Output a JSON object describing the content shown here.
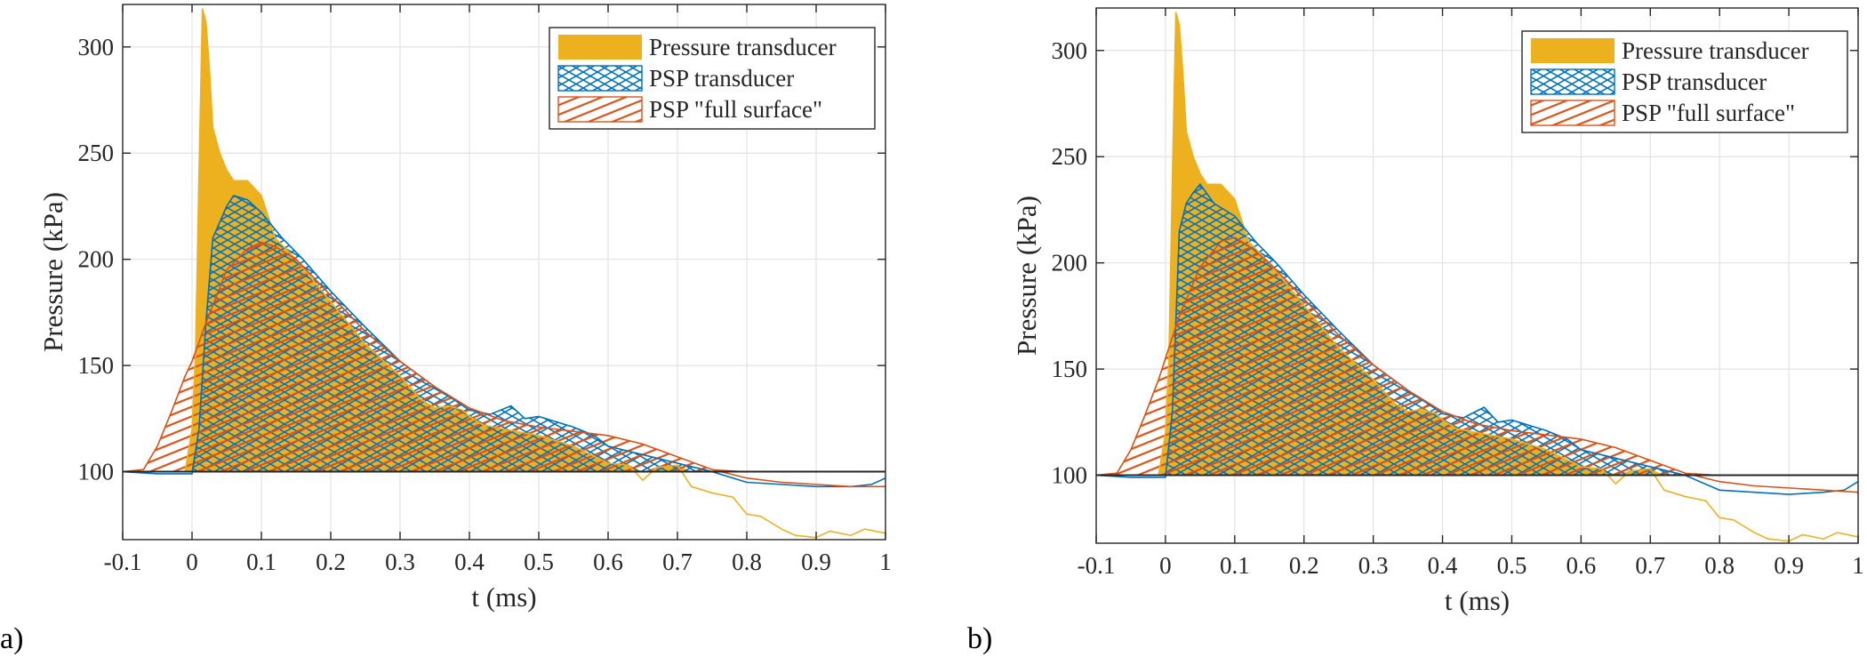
{
  "colors": {
    "pressure_transducer": "#EDB120",
    "psp_transducer": "#0072BD",
    "psp_full_surface": "#D95319",
    "reference_line": "#262626",
    "grid": "#e3e3e3",
    "axes": "#262626"
  },
  "panel_labels": [
    "a)",
    "b)"
  ],
  "chart_data": [
    {
      "type": "area",
      "panel": "a)",
      "xlabel": "t (ms)",
      "ylabel": "Pressure (kPa)",
      "xlim": [
        -0.1,
        1.0
      ],
      "ylim": [
        68,
        320
      ],
      "xticks": [
        "-0.1",
        "0",
        "0.1",
        "0.2",
        "0.3",
        "0.4",
        "0.5",
        "0.6",
        "0.7",
        "0.8",
        "0.9",
        "1"
      ],
      "xtick_values": [
        -0.1,
        0,
        0.1,
        0.2,
        0.3,
        0.4,
        0.5,
        0.6,
        0.7,
        0.8,
        0.9,
        1.0
      ],
      "yticks": [
        "100",
        "150",
        "200",
        "250",
        "300"
      ],
      "ytick_values": [
        100,
        150,
        200,
        250,
        300
      ],
      "grid": true,
      "legend_position": "top-right",
      "baseline": 100,
      "series": [
        {
          "name": "Pressure transducer",
          "fill": "solid",
          "x": [
            -0.1,
            -0.05,
            -0.01,
            0.0,
            0.005,
            0.01,
            0.015,
            0.02,
            0.025,
            0.03,
            0.04,
            0.05,
            0.06,
            0.07,
            0.08,
            0.1,
            0.12,
            0.15,
            0.2,
            0.25,
            0.3,
            0.33,
            0.35,
            0.37,
            0.39,
            0.4,
            0.42,
            0.45,
            0.5,
            0.55,
            0.6,
            0.63,
            0.65,
            0.67,
            0.7,
            0.72,
            0.75,
            0.78,
            0.8,
            0.82,
            0.85,
            0.87,
            0.9,
            0.92,
            0.95,
            0.97,
            1.0
          ],
          "values": [
            100,
            100,
            100,
            120,
            155,
            240,
            318,
            312,
            290,
            262,
            250,
            242,
            237,
            237,
            237,
            230,
            210,
            200,
            180,
            160,
            145,
            134,
            130,
            131,
            129,
            126,
            122,
            120,
            117,
            112,
            104,
            103,
            96,
            102,
            103,
            93,
            90,
            88,
            80,
            79,
            73,
            70,
            69,
            72,
            70,
            73,
            71
          ]
        },
        {
          "name": "PSP transducer",
          "fill": "crosshatch",
          "x": [
            -0.1,
            -0.05,
            0.0,
            0.01,
            0.02,
            0.03,
            0.05,
            0.06,
            0.08,
            0.1,
            0.13,
            0.16,
            0.2,
            0.25,
            0.3,
            0.35,
            0.4,
            0.43,
            0.46,
            0.48,
            0.5,
            0.53,
            0.55,
            0.58,
            0.6,
            0.65,
            0.7,
            0.75,
            0.8,
            0.85,
            0.9,
            0.95,
            0.98,
            1.0
          ],
          "values": [
            100,
            99,
            99,
            120,
            170,
            210,
            225,
            230,
            228,
            222,
            210,
            200,
            185,
            168,
            152,
            140,
            129,
            127,
            131,
            125,
            126,
            123,
            121,
            117,
            112,
            108,
            104,
            100,
            95,
            94,
            93,
            93,
            94,
            97
          ]
        },
        {
          "name": "PSP \"full surface\"",
          "fill": "diagonal",
          "x": [
            -0.1,
            -0.07,
            -0.05,
            -0.03,
            -0.01,
            0.0,
            0.02,
            0.05,
            0.08,
            0.1,
            0.12,
            0.15,
            0.2,
            0.25,
            0.3,
            0.35,
            0.4,
            0.45,
            0.5,
            0.55,
            0.6,
            0.65,
            0.7,
            0.75,
            0.8,
            0.85,
            0.9,
            0.95,
            1.0
          ],
          "values": [
            100,
            101,
            112,
            128,
            145,
            152,
            170,
            195,
            205,
            208,
            206,
            200,
            183,
            166,
            152,
            140,
            130,
            124,
            121,
            119,
            117,
            113,
            107,
            101,
            97,
            95,
            94,
            93,
            93
          ]
        }
      ]
    },
    {
      "type": "area",
      "panel": "b)",
      "xlabel": "t (ms)",
      "ylabel": "Pressure (kPa)",
      "xlim": [
        -0.1,
        1.0
      ],
      "ylim": [
        68,
        320
      ],
      "xticks": [
        "-0.1",
        "0",
        "0.1",
        "0.2",
        "0.3",
        "0.4",
        "0.5",
        "0.6",
        "0.7",
        "0.8",
        "0.9",
        "1"
      ],
      "xtick_values": [
        -0.1,
        0,
        0.1,
        0.2,
        0.3,
        0.4,
        0.5,
        0.6,
        0.7,
        0.8,
        0.9,
        1.0
      ],
      "yticks": [
        "100",
        "150",
        "200",
        "250",
        "300"
      ],
      "ytick_values": [
        100,
        150,
        200,
        250,
        300
      ],
      "grid": true,
      "legend_position": "top-right",
      "baseline": 100,
      "series": [
        {
          "name": "Pressure transducer",
          "fill": "solid",
          "x": [
            -0.1,
            -0.05,
            -0.01,
            0.0,
            0.005,
            0.01,
            0.015,
            0.02,
            0.025,
            0.03,
            0.04,
            0.05,
            0.06,
            0.07,
            0.08,
            0.1,
            0.12,
            0.15,
            0.2,
            0.25,
            0.3,
            0.33,
            0.35,
            0.37,
            0.39,
            0.4,
            0.42,
            0.45,
            0.5,
            0.55,
            0.6,
            0.63,
            0.65,
            0.67,
            0.7,
            0.72,
            0.75,
            0.78,
            0.8,
            0.82,
            0.85,
            0.87,
            0.9,
            0.92,
            0.95,
            0.97,
            1.0
          ],
          "values": [
            100,
            100,
            100,
            120,
            155,
            240,
            318,
            312,
            290,
            262,
            250,
            242,
            237,
            237,
            237,
            230,
            210,
            200,
            180,
            160,
            145,
            134,
            130,
            131,
            129,
            126,
            122,
            120,
            117,
            112,
            104,
            103,
            96,
            102,
            103,
            93,
            90,
            88,
            80,
            79,
            73,
            70,
            69,
            72,
            70,
            73,
            71
          ]
        },
        {
          "name": "PSP transducer",
          "fill": "crosshatch",
          "x": [
            -0.1,
            -0.05,
            0.0,
            0.01,
            0.02,
            0.03,
            0.04,
            0.05,
            0.07,
            0.1,
            0.13,
            0.16,
            0.2,
            0.25,
            0.3,
            0.35,
            0.4,
            0.43,
            0.46,
            0.48,
            0.5,
            0.53,
            0.55,
            0.58,
            0.6,
            0.65,
            0.7,
            0.75,
            0.8,
            0.85,
            0.9,
            0.95,
            0.98,
            1.0
          ],
          "values": [
            100,
            99,
            99,
            130,
            215,
            228,
            233,
            237,
            228,
            222,
            210,
            200,
            185,
            168,
            152,
            140,
            129,
            127,
            132,
            125,
            126,
            123,
            121,
            117,
            112,
            108,
            104,
            100,
            93,
            92,
            91,
            92,
            93,
            97
          ]
        },
        {
          "name": "PSP \"full surface\"",
          "fill": "diagonal",
          "x": [
            -0.1,
            -0.07,
            -0.05,
            -0.03,
            -0.01,
            0.0,
            0.02,
            0.05,
            0.08,
            0.1,
            0.12,
            0.15,
            0.2,
            0.25,
            0.3,
            0.35,
            0.4,
            0.45,
            0.5,
            0.55,
            0.6,
            0.65,
            0.7,
            0.75,
            0.8,
            0.85,
            0.9,
            0.95,
            1.0
          ],
          "values": [
            100,
            101,
            112,
            128,
            145,
            155,
            175,
            198,
            210,
            212,
            208,
            200,
            183,
            166,
            152,
            140,
            130,
            124,
            121,
            119,
            117,
            113,
            107,
            101,
            97,
            95,
            94,
            93,
            92
          ]
        }
      ]
    }
  ]
}
